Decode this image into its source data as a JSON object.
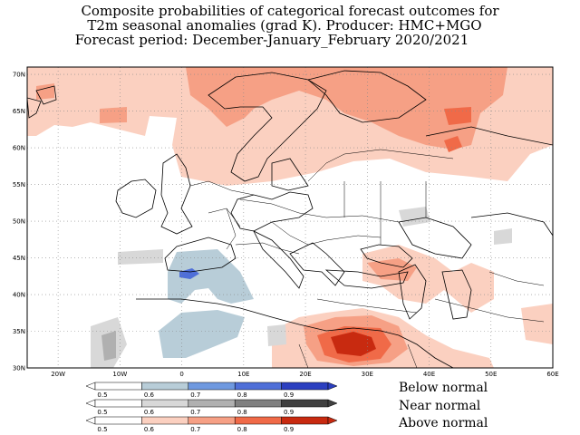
{
  "title": {
    "line1": "Composite probabilities of categorical forecast outcomes for",
    "line2": "T2m seasonal anomalies (grad K). Producer: HMC+MGO",
    "line3": "Forecast period: December-January_February 2020/2021"
  },
  "map": {
    "lat_labels": [
      "70N",
      "65N",
      "60N",
      "55N",
      "50N",
      "45N",
      "40N",
      "35N",
      "30N"
    ],
    "lon_labels": [
      "20W",
      "10W",
      "0",
      "10E",
      "20E",
      "30E",
      "40E",
      "50E",
      "60E"
    ],
    "lat_range": [
      30,
      71
    ],
    "lon_range": [
      -25,
      60
    ],
    "grid": "dotted"
  },
  "legend": {
    "below": {
      "label": "Below normal",
      "ticks": [
        "0.5",
        "0.6",
        "0.7",
        "0.8",
        "0.9"
      ],
      "colors": [
        "#ffffff",
        "#b8cdd8",
        "#6f99e0",
        "#4f6fd8",
        "#2b3fc0"
      ]
    },
    "near": {
      "label": "Near normal",
      "ticks": [
        "0.5",
        "0.6",
        "0.7",
        "0.8",
        "0.9"
      ],
      "colors": [
        "#ffffff",
        "#d8d8d8",
        "#b0b0b0",
        "#808080",
        "#404040"
      ]
    },
    "above": {
      "label": "Above normal",
      "ticks": [
        "0.5",
        "0.6",
        "0.7",
        "0.8",
        "0.9"
      ],
      "colors": [
        "#ffffff",
        "#fbd0c0",
        "#f6a085",
        "#f06a48",
        "#c82a10"
      ]
    }
  }
}
